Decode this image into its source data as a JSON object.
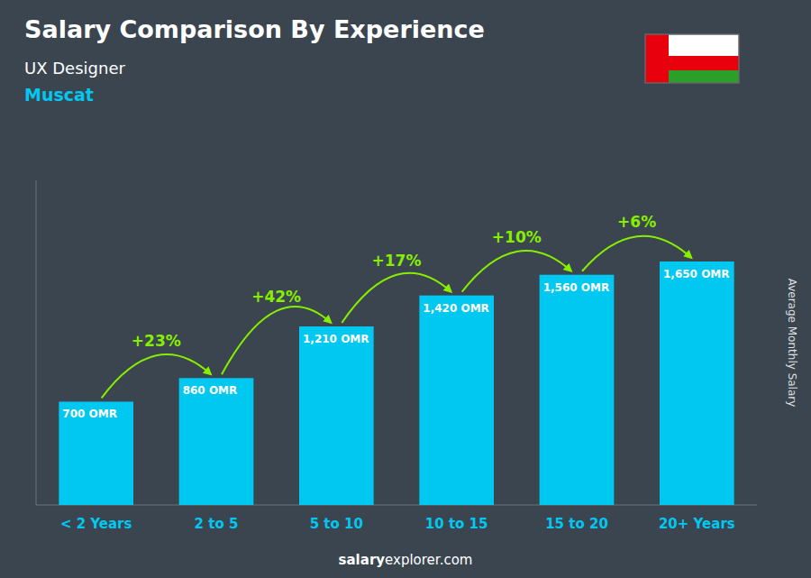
{
  "chart_data": {
    "type": "bar",
    "title": "Salary Comparison By Experience",
    "subtitle": "UX Designer",
    "city": "Muscat",
    "categories": [
      "< 2 Years",
      "2 to 5",
      "5 to 10",
      "10 to 15",
      "15 to 20",
      "20+ Years"
    ],
    "values": [
      700,
      860,
      1210,
      1420,
      1560,
      1650
    ],
    "value_labels": [
      "700 OMR",
      "860 OMR",
      "1,210 OMR",
      "1,420 OMR",
      "1,560 OMR",
      "1,650 OMR"
    ],
    "data_labels": true,
    "annotations": [
      "+23%",
      "+42%",
      "+17%",
      "+10%",
      "+6%"
    ],
    "ylabel": "Average Monthly Salary",
    "footer": [
      "salary",
      "explorer.com"
    ],
    "color": "#00C8F0",
    "ylim": [
      0,
      2200
    ],
    "grid": false,
    "tick_labels": "x"
  }
}
